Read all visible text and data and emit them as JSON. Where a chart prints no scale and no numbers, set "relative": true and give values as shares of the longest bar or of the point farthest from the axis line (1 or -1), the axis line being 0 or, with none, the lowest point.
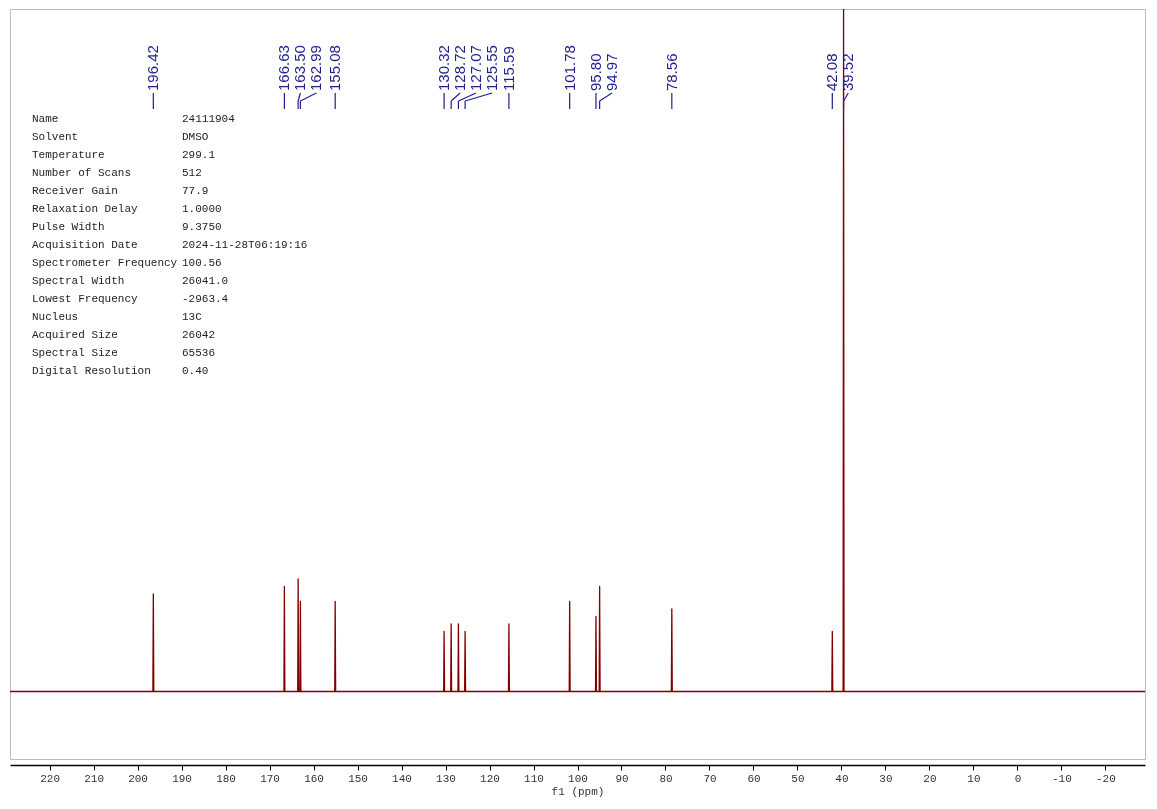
{
  "chart_data": {
    "type": "line",
    "relative": true,
    "xlabel": "f1 (ppm)",
    "xlim": [
      229,
      -29
    ],
    "xticks": [
      220,
      210,
      200,
      190,
      180,
      170,
      160,
      150,
      140,
      130,
      120,
      110,
      100,
      90,
      80,
      70,
      60,
      50,
      40,
      30,
      20,
      10,
      0,
      -10,
      -20
    ],
    "grid": false,
    "marker": "none",
    "line_style": "solid",
    "series": [
      {
        "color": "#800000",
        "x": [
          229,
          196.52,
          196.42,
          196.32,
          166.73,
          166.63,
          166.53,
          163.6,
          163.5,
          163.4,
          163.09,
          162.99,
          162.89,
          155.18,
          155.08,
          154.98,
          130.42,
          130.32,
          130.22,
          128.82,
          128.72,
          128.62,
          127.17,
          127.07,
          126.97,
          125.65,
          125.55,
          125.45,
          115.69,
          115.59,
          115.49,
          101.88,
          101.78,
          101.68,
          95.9,
          95.8,
          95.7,
          95.07,
          94.97,
          94.87,
          78.66,
          78.56,
          78.46,
          42.18,
          42.08,
          41.98,
          39.62,
          39.52,
          39.42,
          -29
        ],
        "values": [
          0.09,
          0.09,
          0.22,
          0.09,
          0.09,
          0.23,
          0.09,
          0.09,
          0.24,
          0.09,
          0.09,
          0.21,
          0.09,
          0.09,
          0.21,
          0.09,
          0.09,
          0.17,
          0.09,
          0.09,
          0.18,
          0.09,
          0.09,
          0.18,
          0.09,
          0.09,
          0.17,
          0.09,
          0.09,
          0.18,
          0.09,
          0.09,
          0.21,
          0.09,
          0.09,
          0.19,
          0.09,
          0.09,
          0.23,
          0.09,
          0.09,
          0.2,
          0.09,
          0.09,
          0.17,
          0.09,
          0.09,
          1,
          0.09,
          0.09
        ]
      }
    ],
    "annotations": [
      {
        "text": "196.42",
        "x": 196.42
      },
      {
        "text": "166.63",
        "x": 166.63
      },
      {
        "text": "163.50",
        "x": 163.5
      },
      {
        "text": "162.99",
        "x": 162.99
      },
      {
        "text": "155.08",
        "x": 155.08
      },
      {
        "text": "130.32",
        "x": 130.32
      },
      {
        "text": "128.72",
        "x": 128.72
      },
      {
        "text": "127.07",
        "x": 127.07
      },
      {
        "text": "125.55",
        "x": 125.55
      },
      {
        "text": "115.59",
        "x": 115.59
      },
      {
        "text": "101.78",
        "x": 101.78
      },
      {
        "text": "95.80",
        "x": 95.8
      },
      {
        "text": "94.97",
        "x": 94.97
      },
      {
        "text": "78.56",
        "x": 78.56
      },
      {
        "text": "42.08",
        "x": 42.08
      },
      {
        "text": "39.52",
        "x": 39.52
      },
      "Name",
      "24111904",
      "Solvent",
      "DMSO",
      "Temperature",
      "299.1",
      "Number of Scans",
      "512",
      "Receiver Gain",
      "77.9",
      "Relaxation Delay",
      "1.0000",
      "Pulse Width",
      "9.3750",
      "Acquisition Date",
      "2024-11-28T06:19:16",
      "Spectrometer Frequency",
      "100.56",
      "Spectral Width",
      "26041.0",
      "Lowest Frequency",
      "-2963.4",
      "Nucleus",
      "13C",
      "Acquired Size",
      "26042",
      "Spectral Size",
      "65536",
      "Digital Resolution",
      "0.40"
    ]
  }
}
